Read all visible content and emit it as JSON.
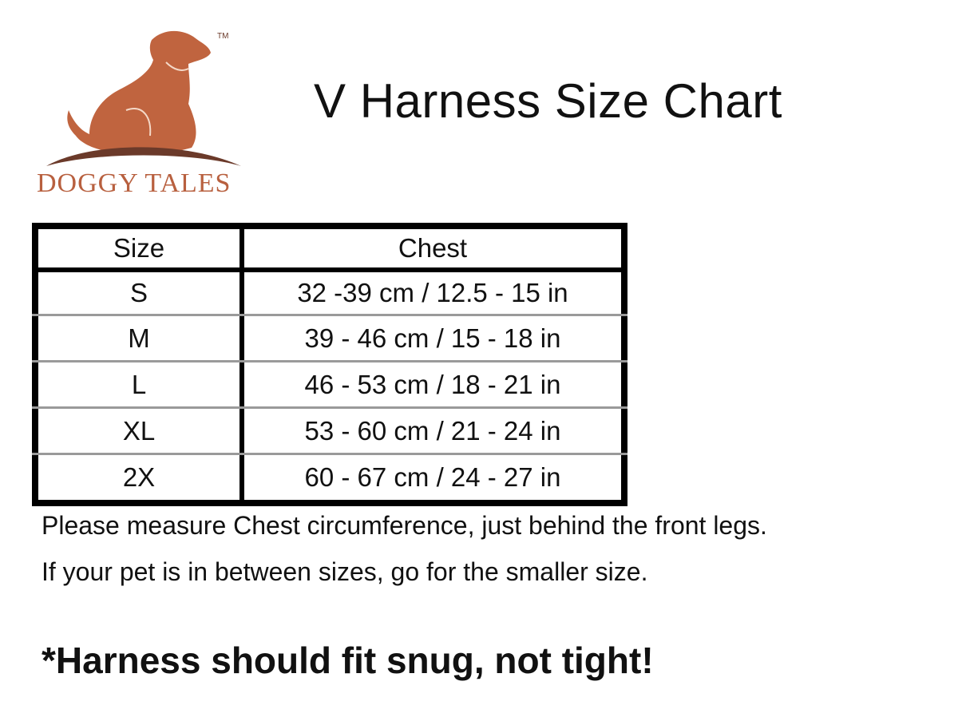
{
  "logo": {
    "brand": "DOGGY TALES",
    "trademark": "TM",
    "colors": {
      "dog": "#c0643f",
      "ground": "#6b3a2a"
    }
  },
  "title": "V Harness Size Chart",
  "table": {
    "headers": [
      "Size",
      "Chest"
    ],
    "rows": [
      [
        "S",
        "32 -39 cm / 12.5 - 15 in"
      ],
      [
        "M",
        "39 - 46 cm / 15 - 18 in"
      ],
      [
        "L",
        "46 - 53 cm / 18 - 21 in"
      ],
      [
        "XL",
        "53 - 60 cm / 21 - 24 in"
      ],
      [
        "2X",
        "60 - 67 cm / 24 - 27 in"
      ]
    ]
  },
  "notes": [
    "Please measure Chest circumference, just behind the front legs.",
    "If your pet is in between sizes, go for the smaller size."
  ],
  "emphasis": "*Harness should fit snug, not tight!"
}
